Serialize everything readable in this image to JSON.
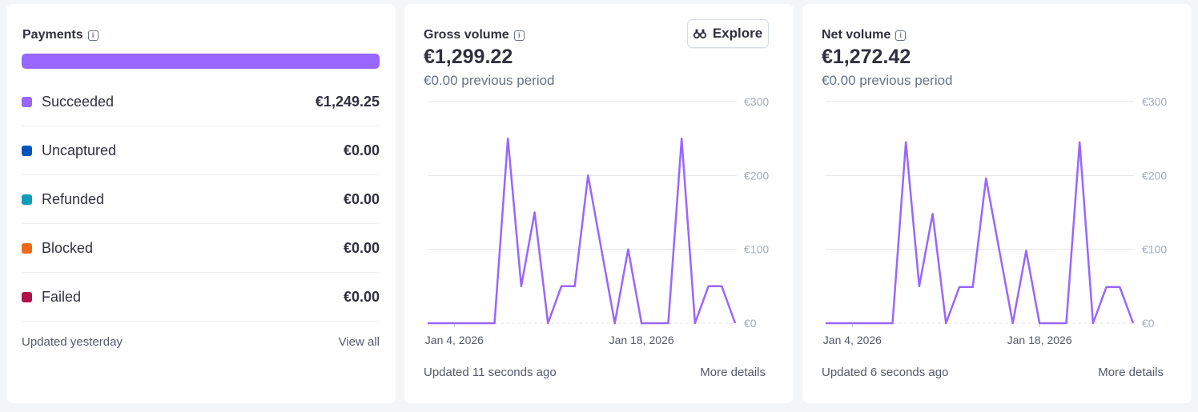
{
  "payments": {
    "title": "Payments",
    "bar_fill_fraction": 1.0,
    "bar_color": "#9966ff",
    "rows": [
      {
        "label": "Succeeded",
        "value": "€1,249.25",
        "color": "#9966ff"
      },
      {
        "label": "Uncaptured",
        "value": "€0.00",
        "color": "#0055bc"
      },
      {
        "label": "Refunded",
        "value": "€0.00",
        "color": "#0e9cba"
      },
      {
        "label": "Blocked",
        "value": "€0.00",
        "color": "#f06a14"
      },
      {
        "label": "Failed",
        "value": "€0.00",
        "color": "#b0124a"
      }
    ],
    "updated": "Updated yesterday",
    "view_all": "View all"
  },
  "gross": {
    "title": "Gross volume",
    "value": "€1,299.22",
    "previous": "€0.00 previous period",
    "explore_label": "Explore",
    "updated": "Updated 11 seconds ago",
    "more_details": "More details"
  },
  "net": {
    "title": "Net volume",
    "value": "€1,272.42",
    "previous": "€0.00 previous period",
    "updated": "Updated 6 seconds ago",
    "more_details": "More details"
  },
  "colors": {
    "accent": "#9966ff",
    "grid": "#e3e6ea",
    "axis_text": "#a3acb9"
  },
  "chart_data": [
    {
      "type": "line",
      "x_ticks": [
        "Jan 4, 2026",
        "Jan 18, 2026"
      ],
      "y_ticks": [
        "€300",
        "€200",
        "€100",
        "€0"
      ],
      "ylim": [
        0,
        300
      ],
      "grid": true,
      "series": [
        {
          "values": [
            0,
            0,
            0,
            0,
            0,
            0,
            250,
            50,
            150,
            0,
            50,
            50,
            200,
            100,
            0,
            100,
            0,
            0,
            0,
            250,
            0,
            50,
            50,
            0
          ]
        }
      ]
    },
    {
      "type": "line",
      "x_ticks": [
        "Jan 4, 2026",
        "Jan 18, 2026"
      ],
      "y_ticks": [
        "€300",
        "€200",
        "€100",
        "€0"
      ],
      "ylim": [
        0,
        300
      ],
      "grid": true,
      "series": [
        {
          "values": [
            0,
            0,
            0,
            0,
            0,
            0,
            245,
            50,
            148,
            0,
            49,
            49,
            196,
            98,
            0,
            98,
            0,
            0,
            0,
            245,
            0,
            49,
            49,
            0
          ]
        }
      ]
    }
  ]
}
